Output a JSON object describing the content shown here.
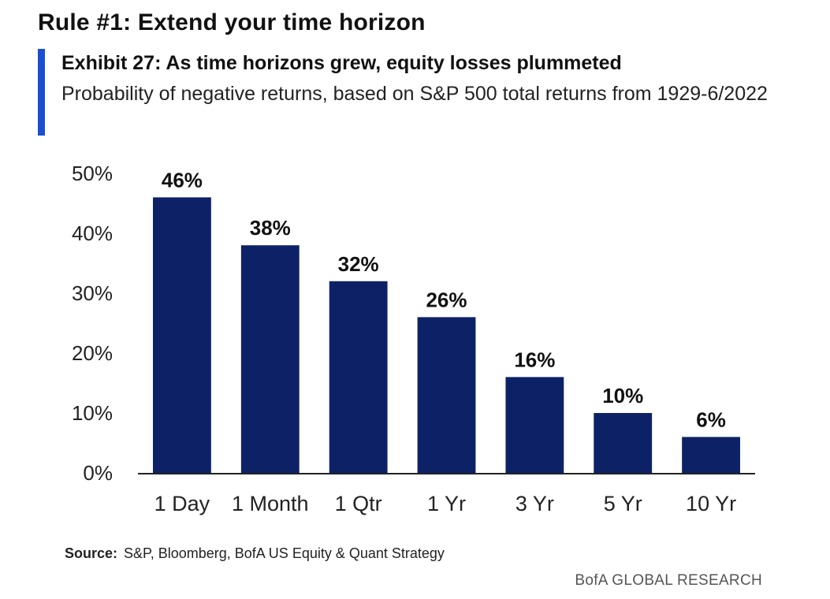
{
  "header": {
    "rule_title": "Rule #1: Extend your time horizon",
    "accent_color": "#1a4fd0"
  },
  "chart_data": {
    "type": "bar",
    "title": "Exhibit 27: As time horizons grew, equity losses plummeted",
    "subtitle": "Probability of negative returns, based on S&P 500 total returns from 1929-6/2022",
    "categories": [
      "1 Day",
      "1 Month",
      "1 Qtr",
      "1 Yr",
      "3 Yr",
      "5 Yr",
      "10 Yr"
    ],
    "values": [
      46,
      38,
      32,
      26,
      16,
      10,
      6
    ],
    "data_labels": [
      "46%",
      "38%",
      "32%",
      "26%",
      "16%",
      "10%",
      "6%"
    ],
    "yticks": [
      0,
      10,
      20,
      30,
      40,
      50
    ],
    "ytick_labels": [
      "0%",
      "10%",
      "20%",
      "30%",
      "40%",
      "50%"
    ],
    "ylim": [
      0,
      50
    ],
    "xlabel": "",
    "ylabel": "",
    "grid": false,
    "bar_color": "#0d2266"
  },
  "footer": {
    "source_label": "Source:",
    "source_text": "S&P, Bloomberg, BofA US Equity & Quant Strategy",
    "brand": "BofA GLOBAL RESEARCH"
  }
}
